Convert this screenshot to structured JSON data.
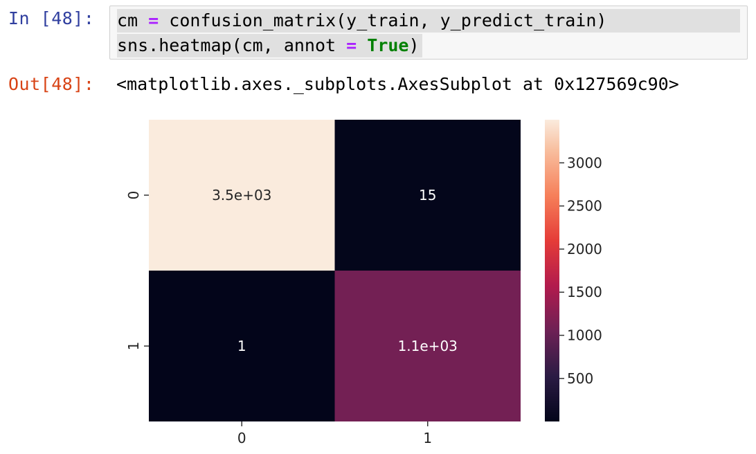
{
  "notebook": {
    "in_prompt": "In [48]:",
    "out_prompt": "Out[48]:",
    "code": {
      "line1": {
        "var": "cm",
        "op": "=",
        "rest": "confusion_matrix(y_train, y_predict_train)"
      },
      "line2": {
        "start": "sns.heatmap(cm, annot ",
        "op": "=",
        "space": " ",
        "kw": "True",
        "end": ")"
      }
    },
    "output_text": "<matplotlib.axes._subplots.AxesSubplot at 0x127569c90>"
  },
  "chart_data": {
    "type": "heatmap",
    "x_categories": [
      "0",
      "1"
    ],
    "y_categories": [
      "0",
      "1"
    ],
    "values": [
      [
        3500,
        15
      ],
      [
        1,
        1100
      ]
    ],
    "annotations": [
      [
        "3.5e+03",
        "15"
      ],
      [
        "1",
        "1.1e+03"
      ]
    ],
    "colormap": "rocket",
    "colorbar": {
      "ticks": [
        500,
        1000,
        1500,
        2000,
        2500,
        3000
      ],
      "range": [
        1,
        3500
      ]
    },
    "colors": {
      "low": "#03051a",
      "high": "#faebdd"
    }
  }
}
